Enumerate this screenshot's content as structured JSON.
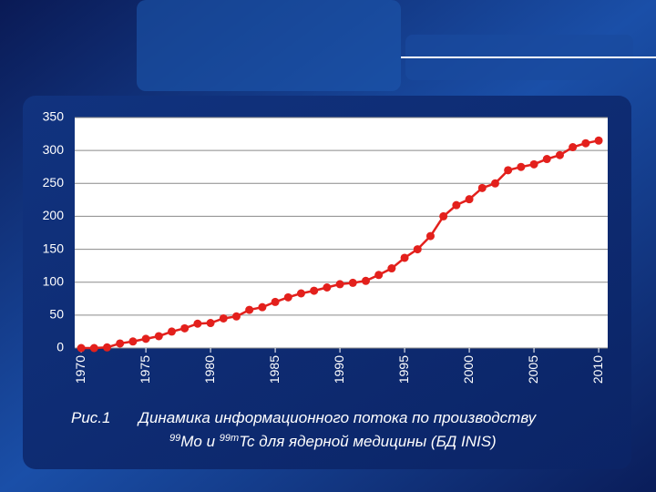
{
  "chart_data": {
    "type": "line",
    "x": [
      1970,
      1971,
      1972,
      1973,
      1974,
      1975,
      1976,
      1977,
      1978,
      1979,
      1980,
      1981,
      1982,
      1983,
      1984,
      1985,
      1986,
      1987,
      1988,
      1989,
      1990,
      1991,
      1992,
      1993,
      1994,
      1995,
      1996,
      1997,
      1998,
      1999,
      2000,
      2001,
      2002,
      2003,
      2004,
      2005,
      2006,
      2007,
      2008,
      2009,
      2010
    ],
    "series": [
      {
        "color": "#e3201c",
        "values": [
          0,
          0,
          1,
          7,
          10,
          14,
          18,
          25,
          30,
          37,
          38,
          45,
          48,
          58,
          62,
          70,
          77,
          83,
          87,
          92,
          97,
          99,
          102,
          111,
          121,
          137,
          150,
          170,
          200,
          217,
          226,
          243,
          250,
          270,
          275,
          279,
          287,
          293,
          305,
          311,
          315
        ]
      }
    ],
    "xlim": [
      1969.5,
      2010.7
    ],
    "xticks": [
      1970,
      1975,
      1980,
      1985,
      1990,
      1995,
      2000,
      2005,
      2010
    ],
    "ylim": [
      0,
      350
    ],
    "yticks": [
      0,
      50,
      100,
      150,
      200,
      250,
      300,
      350
    ],
    "grid": true
  },
  "caption": {
    "label": "Рис.1",
    "line1": "Динамика информационного потока  по производству",
    "line2": [
      "99",
      "Мо и ",
      "99m",
      "Tc  для ядерной медицины (БД INIS)"
    ]
  }
}
